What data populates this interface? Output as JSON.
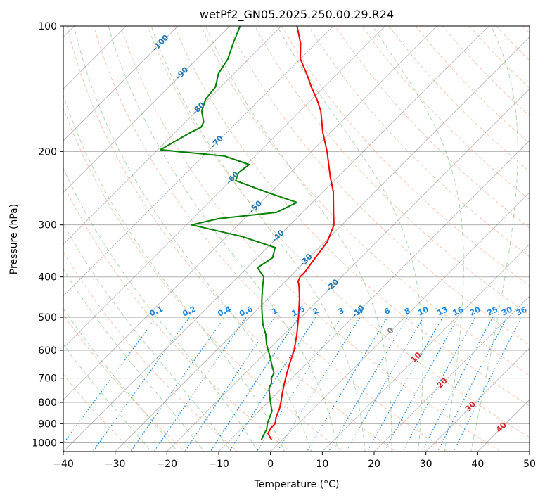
{
  "chart_data": {
    "type": "line",
    "chart_kind": "skew-T log-P diagram",
    "title": "wetPf2_GN05.2025.250.00.29.R24",
    "xlabel": "Temperature (°C)",
    "ylabel": "Pressure (hPa)",
    "xlim": [
      -40,
      50
    ],
    "ylim": [
      1050,
      100
    ],
    "x_ticks": [
      -40,
      -30,
      -20,
      -10,
      0,
      10,
      20,
      30,
      40,
      50
    ],
    "x_tick_labels": [
      "−40",
      "−30",
      "−20",
      "−10",
      "0",
      "10",
      "20",
      "30",
      "40",
      "50"
    ],
    "y_ticks": [
      1000,
      900,
      800,
      700,
      600,
      500,
      400,
      300,
      200,
      100
    ],
    "y_tick_labels": [
      "1000",
      "900",
      "800",
      "700",
      "600",
      "500",
      "400",
      "300",
      "200",
      "100"
    ],
    "isotherm_labels": [
      {
        "t": -100,
        "p": 110,
        "label": "-100"
      },
      {
        "t": -90,
        "p": 130,
        "label": "-90"
      },
      {
        "t": -80,
        "p": 158,
        "label": "-80"
      },
      {
        "t": -70,
        "p": 190,
        "label": "-70"
      },
      {
        "t": -60,
        "p": 232,
        "label": "-60"
      },
      {
        "t": -50,
        "p": 272,
        "label": "-50"
      },
      {
        "t": -40,
        "p": 320,
        "label": "-40"
      },
      {
        "t": -30,
        "p": 365,
        "label": "-30"
      },
      {
        "t": -20,
        "p": 420,
        "label": "-20"
      },
      {
        "t": -10,
        "p": 485,
        "label": "-10"
      },
      {
        "t": 0,
        "p": 540,
        "label": "0"
      },
      {
        "t": 10,
        "p": 625,
        "label": "10"
      },
      {
        "t": 20,
        "p": 720,
        "label": "20"
      },
      {
        "t": 30,
        "p": 820,
        "label": "30"
      },
      {
        "t": 40,
        "p": 920,
        "label": "40"
      }
    ],
    "mixing_ratio_labels": [
      "0.1",
      "0.2",
      "0.4",
      "0.6",
      "1",
      "1.5",
      "2",
      "3",
      "4",
      "6",
      "8",
      "10",
      "13",
      "16",
      "20",
      "25",
      "30",
      "36"
    ],
    "mixing_ratio_values": [
      0.1,
      0.2,
      0.4,
      0.6,
      1,
      1.5,
      2,
      3,
      4,
      6,
      8,
      10,
      13,
      16,
      20,
      25,
      30,
      36
    ],
    "mixing_ratio_label_pressure": 500,
    "series": [
      {
        "name": "Temperature",
        "color": "#ff0000",
        "p": [
          985,
          950,
          920,
          900,
          870,
          830,
          800,
          760,
          720,
          680,
          640,
          600,
          550,
          500,
          450,
          420,
          410,
          400,
          390,
          370,
          350,
          330,
          300,
          280,
          250,
          230,
          200,
          180,
          160,
          150,
          140,
          130,
          120,
          110,
          100
        ],
        "t": [
          -2,
          -4,
          -4.5,
          -4.5,
          -5.5,
          -6.5,
          -7.5,
          -9,
          -10.5,
          -12,
          -13.5,
          -15,
          -17.5,
          -20.5,
          -24,
          -26.5,
          -27.5,
          -28,
          -28,
          -28.5,
          -29,
          -29.5,
          -31.5,
          -34,
          -38,
          -41.5,
          -47,
          -51.5,
          -56,
          -59,
          -62.5,
          -66,
          -70,
          -73,
          -77
        ]
      },
      {
        "name": "Dewpoint",
        "color": "#008000",
        "p": [
          985,
          960,
          930,
          900,
          880,
          860,
          840,
          820,
          800,
          780,
          760,
          740,
          720,
          700,
          680,
          650,
          620,
          600,
          580,
          550,
          520,
          500,
          480,
          460,
          440,
          420,
          400,
          380,
          360,
          340,
          320,
          300,
          290,
          280,
          265,
          250,
          235,
          225,
          215,
          205,
          200,
          198,
          180,
          175,
          170,
          160,
          150,
          140,
          130,
          120,
          110,
          100
        ],
        "t": [
          -4,
          -4.5,
          -5,
          -6,
          -6.5,
          -7,
          -7.5,
          -8.5,
          -9.5,
          -10.5,
          -11.5,
          -12.5,
          -13,
          -14,
          -14.5,
          -16.5,
          -18.5,
          -20,
          -21.5,
          -23.5,
          -26,
          -27.5,
          -29,
          -30.5,
          -32,
          -33.5,
          -35,
          -38,
          -37,
          -38.5,
          -47,
          -59,
          -55,
          -45,
          -43,
          -51,
          -59,
          -60,
          -59.5,
          -66,
          -76,
          -79.5,
          -77,
          -76,
          -76.5,
          -79,
          -80.5,
          -81,
          -83,
          -84,
          -86,
          -88
        ]
      }
    ]
  },
  "colors": {
    "temperature": "#ff0000",
    "dewpoint": "#008000",
    "isotherm": "#2b2b2b",
    "dry_adiabat": "#ff7f50",
    "moist_adiabat": "#2ca02c",
    "mixing_ratio": "#1e88e5",
    "isotherm_label": "#1f77b4",
    "isotherm_label_zero": "#808080",
    "isotherm_label_warm": "#d62728"
  }
}
